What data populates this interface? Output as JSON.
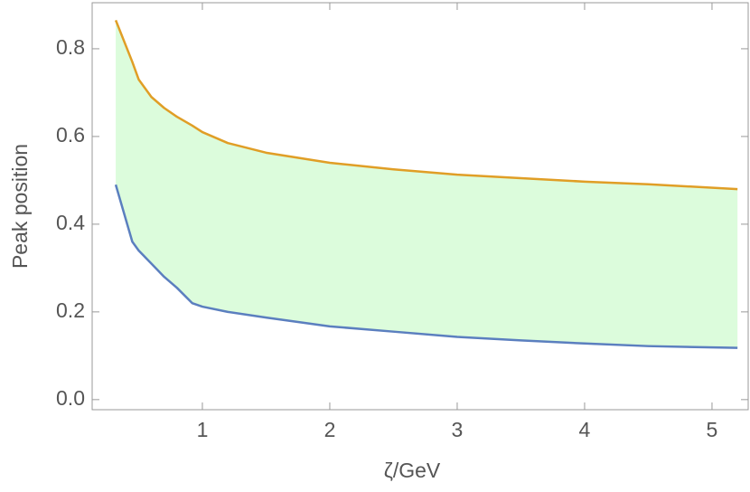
{
  "chart_data": {
    "type": "band",
    "x_label": "ζ/GeV",
    "y_label": "Peak position",
    "x": [
      0.32,
      0.45,
      0.5,
      0.6,
      0.7,
      0.8,
      0.92,
      1.0,
      1.2,
      1.5,
      2.0,
      2.5,
      3.0,
      3.5,
      4.0,
      4.5,
      5.2
    ],
    "series": [
      {
        "color": "#5b7fbf",
        "values": [
          0.49,
          0.36,
          0.34,
          0.31,
          0.28,
          0.255,
          0.22,
          0.212,
          0.2,
          0.187,
          0.167,
          0.155,
          0.143,
          0.135,
          0.128,
          0.122,
          0.118
        ]
      },
      {
        "color": "#e09e26",
        "values": [
          0.865,
          0.77,
          0.73,
          0.69,
          0.665,
          0.645,
          0.625,
          0.61,
          0.585,
          0.563,
          0.54,
          0.525,
          0.513,
          0.505,
          0.497,
          0.491,
          0.48
        ]
      }
    ],
    "fill_color": "#dcfcdc",
    "xlim": [
      0.135,
      5.284
    ],
    "xticks": [
      1,
      2,
      3,
      4,
      5
    ],
    "ylim": [
      -0.023,
      0.905
    ],
    "yticks": [
      {
        "value": 0,
        "label": "0.0"
      },
      0.2,
      0.4,
      0.6,
      0.8
    ]
  }
}
